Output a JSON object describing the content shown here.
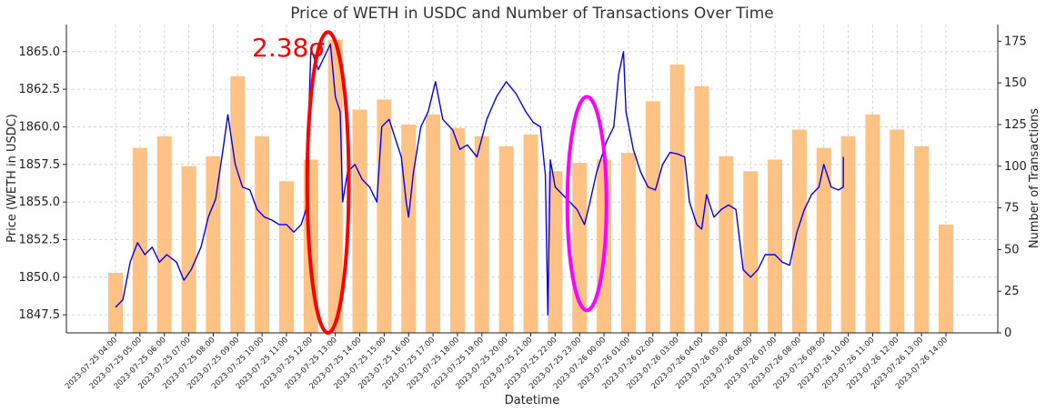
{
  "chart_data": {
    "type": "bar+line",
    "title": "Price of WETH in USDC and Number of Transactions Over Time",
    "xlabel": "Datetime",
    "ylabel_left": "Price (WETH in USDC)",
    "ylabel_right": "Number of Transactions",
    "ylim_left": [
      1846.3,
      1866.8
    ],
    "ylim_right": [
      0,
      185
    ],
    "left_ticks": [
      "1847.5",
      "1850.0",
      "1852.5",
      "1855.0",
      "1857.5",
      "1860.0",
      "1862.5",
      "1865.0"
    ],
    "right_ticks": [
      "0",
      "25",
      "50",
      "75",
      "100",
      "125",
      "150",
      "175"
    ],
    "grid": true,
    "categories": [
      "2023-07-25 04:00",
      "2023-07-25 05:00",
      "2023-07-25 06:00",
      "2023-07-25 07:00",
      "2023-07-25 08:00",
      "2023-07-25 09:00",
      "2023-07-25 10:00",
      "2023-07-25 11:00",
      "2023-07-25 12:00",
      "2023-07-25 13:00",
      "2023-07-25 14:00",
      "2023-07-25 15:00",
      "2023-07-25 16:00",
      "2023-07-25 17:00",
      "2023-07-25 18:00",
      "2023-07-25 19:00",
      "2023-07-25 20:00",
      "2023-07-25 21:00",
      "2023-07-25 22:00",
      "2023-07-25 23:00",
      "2023-07-26 00:00",
      "2023-07-26 01:00",
      "2023-07-26 02:00",
      "2023-07-26 03:00",
      "2023-07-26 04:00",
      "2023-07-26 05:00",
      "2023-07-26 06:00",
      "2023-07-26 07:00",
      "2023-07-26 08:00",
      "2023-07-26 09:00",
      "2023-07-26 10:00",
      "2023-07-26 11:00",
      "2023-07-26 12:00",
      "2023-07-26 13:00",
      "2023-07-26 14:00"
    ],
    "series": [
      {
        "name": "Number of Transactions",
        "kind": "bar",
        "axis": "right",
        "color": "#ffbb78",
        "values": [
          36,
          111,
          118,
          100,
          106,
          154,
          118,
          91,
          104,
          176,
          134,
          140,
          125,
          131,
          123,
          118,
          112,
          119,
          97,
          102,
          104,
          108,
          139,
          161,
          148,
          106,
          97,
          104,
          122,
          111,
          118,
          131,
          122,
          112,
          65
        ]
      },
      {
        "name": "Price (WETH in USDC)",
        "kind": "line",
        "axis": "left",
        "color": "#0000ff",
        "points": [
          [
            0.0,
            1848.0
          ],
          [
            0.3,
            1848.5
          ],
          [
            0.6,
            1851.0
          ],
          [
            0.9,
            1852.3
          ],
          [
            1.2,
            1851.5
          ],
          [
            1.5,
            1852.0
          ],
          [
            1.8,
            1851.0
          ],
          [
            2.1,
            1851.5
          ],
          [
            2.5,
            1851.0
          ],
          [
            2.8,
            1849.8
          ],
          [
            3.1,
            1850.5
          ],
          [
            3.5,
            1852.0
          ],
          [
            3.8,
            1854.0
          ],
          [
            4.1,
            1855.2
          ],
          [
            4.4,
            1858.5
          ],
          [
            4.6,
            1860.8
          ],
          [
            4.9,
            1857.5
          ],
          [
            5.2,
            1856.0
          ],
          [
            5.5,
            1855.8
          ],
          [
            5.8,
            1854.5
          ],
          [
            6.1,
            1854.0
          ],
          [
            6.4,
            1853.8
          ],
          [
            6.7,
            1853.5
          ],
          [
            7.0,
            1853.5
          ],
          [
            7.3,
            1853.0
          ],
          [
            7.6,
            1853.5
          ],
          [
            7.8,
            1854.5
          ],
          [
            7.9,
            1860.0
          ],
          [
            8.0,
            1865.2
          ],
          [
            8.3,
            1863.8
          ],
          [
            8.5,
            1864.5
          ],
          [
            8.8,
            1865.5
          ],
          [
            9.0,
            1862.0
          ],
          [
            9.2,
            1861.0
          ],
          [
            9.3,
            1855.0
          ],
          [
            9.5,
            1857.0
          ],
          [
            9.8,
            1857.5
          ],
          [
            10.1,
            1856.5
          ],
          [
            10.4,
            1856.0
          ],
          [
            10.7,
            1855.0
          ],
          [
            10.9,
            1860.0
          ],
          [
            11.2,
            1860.5
          ],
          [
            11.5,
            1859.0
          ],
          [
            11.7,
            1858.0
          ],
          [
            11.9,
            1855.0
          ],
          [
            12.0,
            1854.0
          ],
          [
            12.2,
            1857.0
          ],
          [
            12.5,
            1860.0
          ],
          [
            12.8,
            1861.0
          ],
          [
            13.1,
            1863.0
          ],
          [
            13.4,
            1860.5
          ],
          [
            13.8,
            1859.8
          ],
          [
            14.1,
            1858.5
          ],
          [
            14.4,
            1858.8
          ],
          [
            14.8,
            1858.0
          ],
          [
            15.2,
            1860.5
          ],
          [
            15.6,
            1862.0
          ],
          [
            16.0,
            1863.0
          ],
          [
            16.4,
            1862.2
          ],
          [
            16.8,
            1861.0
          ],
          [
            17.1,
            1860.3
          ],
          [
            17.4,
            1860.0
          ],
          [
            17.6,
            1856.8
          ],
          [
            17.7,
            1847.5
          ],
          [
            17.8,
            1857.8
          ],
          [
            18.0,
            1856.0
          ],
          [
            18.3,
            1855.5
          ],
          [
            18.6,
            1855.0
          ],
          [
            18.9,
            1854.5
          ],
          [
            19.2,
            1853.5
          ],
          [
            19.4,
            1854.8
          ],
          [
            19.7,
            1857.0
          ],
          [
            20.1,
            1859.0
          ],
          [
            20.4,
            1860.0
          ],
          [
            20.6,
            1863.5
          ],
          [
            20.8,
            1865.0
          ],
          [
            20.9,
            1861.0
          ],
          [
            21.2,
            1858.5
          ],
          [
            21.5,
            1857.0
          ],
          [
            21.8,
            1856.0
          ],
          [
            22.1,
            1855.8
          ],
          [
            22.4,
            1857.5
          ],
          [
            22.7,
            1858.3
          ],
          [
            23.0,
            1858.2
          ],
          [
            23.3,
            1858.0
          ],
          [
            23.5,
            1855.0
          ],
          [
            23.8,
            1853.5
          ],
          [
            24.0,
            1853.2
          ],
          [
            24.2,
            1855.5
          ],
          [
            24.5,
            1854.0
          ],
          [
            24.8,
            1854.5
          ],
          [
            25.1,
            1854.8
          ],
          [
            25.4,
            1854.5
          ],
          [
            25.7,
            1850.5
          ],
          [
            26.0,
            1850.0
          ],
          [
            26.3,
            1850.5
          ],
          [
            26.6,
            1851.5
          ],
          [
            27.0,
            1851.5
          ],
          [
            27.3,
            1851.0
          ],
          [
            27.6,
            1850.8
          ],
          [
            27.9,
            1853.0
          ],
          [
            28.2,
            1854.5
          ],
          [
            28.5,
            1855.5
          ],
          [
            28.8,
            1856.0
          ],
          [
            29.0,
            1857.5
          ],
          [
            29.3,
            1856.0
          ],
          [
            29.6,
            1855.8
          ],
          [
            29.8,
            1856.0
          ],
          [
            29.8,
            1858.0
          ]
        ]
      }
    ],
    "annotations": [
      {
        "type": "text",
        "text": "2.38σ",
        "color": "#ff0000"
      },
      {
        "type": "ellipse",
        "label": "red-ellipse",
        "color": "#ff0000",
        "center_x": 8.7,
        "center_y_left": 1856.3,
        "half_width": 0.85,
        "half_height_left": 10.0
      },
      {
        "type": "ellipse",
        "label": "magenta-ellipse",
        "color": "#ff00ff",
        "center_x": 19.3,
        "center_y_left": 1854.9,
        "half_width": 0.8,
        "half_height_left": 7.1
      }
    ]
  }
}
